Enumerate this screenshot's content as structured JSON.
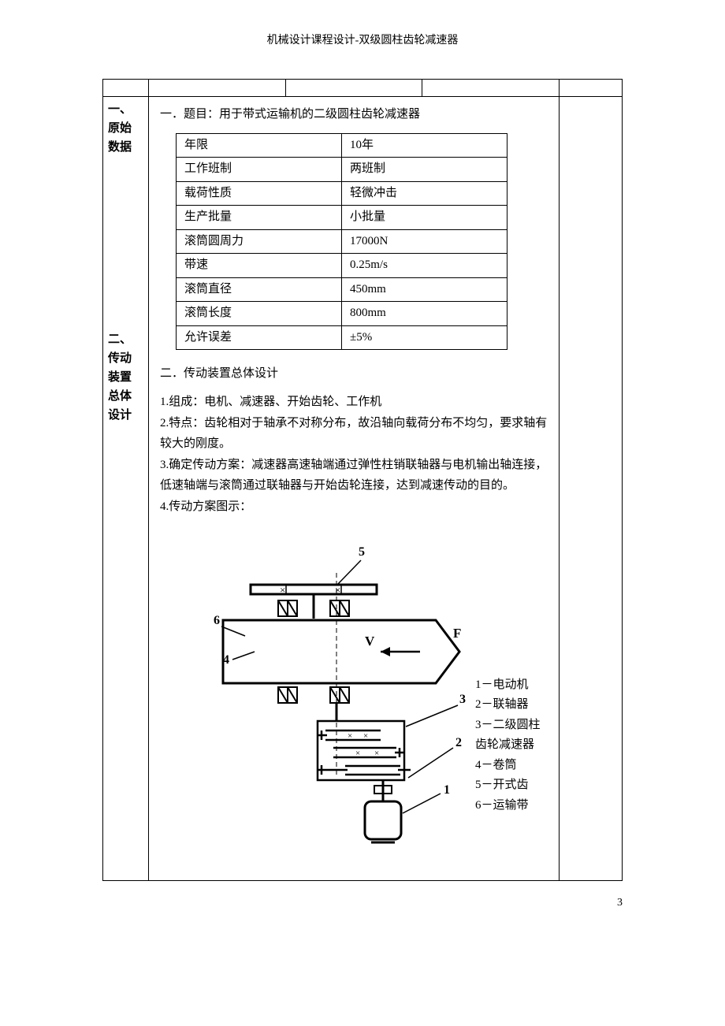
{
  "header": "机械设计课程设计-双级圆柱齿轮减速器",
  "page_number": "3",
  "colors": {
    "text": "#000000",
    "background": "#ffffff",
    "border": "#000000"
  },
  "left_labels": {
    "section1": "一、\n原始\n数据",
    "section2": "二、\n传动\n装置\n总体\n设计"
  },
  "section1": {
    "title": "一．题目：用于带式运输机的二级圆柱齿轮减速器",
    "table": {
      "rows": [
        {
          "k": "年限",
          "v": "10年"
        },
        {
          "k": "工作班制",
          "v": "两班制"
        },
        {
          "k": "载荷性质",
          "v": "轻微冲击"
        },
        {
          "k": "生产批量",
          "v": "小批量"
        },
        {
          "k": "滚筒圆周力",
          "v": "17000N"
        },
        {
          "k": "带速",
          "v": "0.25m/s"
        },
        {
          "k": "滚筒直径",
          "v": "450mm"
        },
        {
          "k": "滚筒长度",
          "v": "800mm"
        },
        {
          "k": "允许误差",
          "v": "±5%"
        }
      ]
    }
  },
  "section2": {
    "title": "二．传动装置总体设计",
    "p1": "1.组成：电机、减速器、开始齿轮、工作机",
    "p2": "2.特点：齿轮相对于轴承不对称分布，故沿轴向载荷分布不均匀，要求轴有较大的刚度。",
    "p3": "3.确定传动方案：减速器高速轴端通过弹性柱销联轴器与电机输出轴连接，低速轴端与滚筒通过联轴器与开始齿轮连接，达到减速传动的目的。",
    "p4": "4.传动方案图示："
  },
  "diagram": {
    "type": "diagram",
    "stroke": "#000000",
    "stroke_width_thick": 3,
    "stroke_width_thin": 1.5,
    "labels": {
      "n1": "1",
      "n2": "2",
      "n3": "3",
      "n4": "4",
      "n5": "5",
      "n6": "6",
      "V": "V",
      "F": "F"
    },
    "legend": {
      "l1": "1－电动机",
      "l2": "2－联轴器",
      "l3": "3－二级圆柱齿轮减速器",
      "l4": "4－卷筒",
      "l5": "5－开式齿",
      "l6": "6－运输带"
    }
  }
}
